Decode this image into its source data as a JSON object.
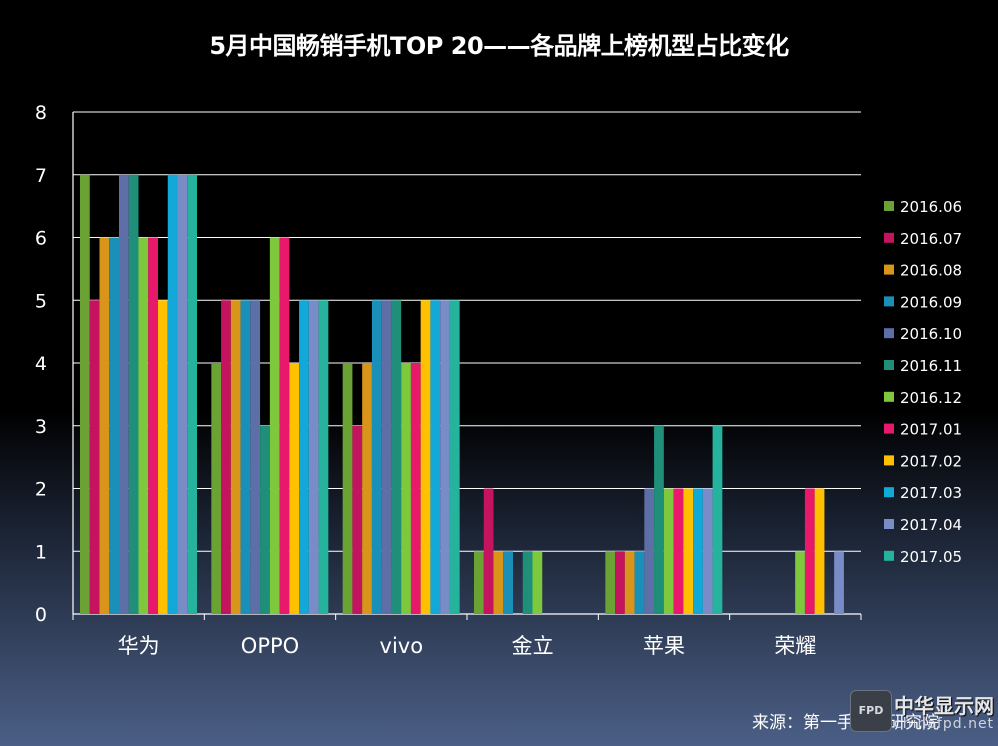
{
  "chart_data": {
    "type": "bar",
    "title": "5月中国畅销手机TOP 20——各品牌上榜机型占比变化",
    "categories": [
      "华为",
      "OPPO",
      "vivo",
      "金立",
      "苹果",
      "荣耀"
    ],
    "ylim": [
      0,
      8
    ],
    "yticks": [
      0,
      1,
      2,
      3,
      4,
      5,
      6,
      7,
      8
    ],
    "grid": true,
    "legend_position": "right",
    "series": [
      {
        "name": "2016.06",
        "color": "#6aa233",
        "values": [
          7,
          4,
          4,
          1,
          1,
          null
        ]
      },
      {
        "name": "2016.07",
        "color": "#c4145f",
        "values": [
          5,
          5,
          3,
          2,
          1,
          null
        ]
      },
      {
        "name": "2016.08",
        "color": "#d9951a",
        "values": [
          6,
          5,
          4,
          1,
          1,
          null
        ]
      },
      {
        "name": "2016.09",
        "color": "#1a8fb8",
        "values": [
          6,
          5,
          5,
          1,
          1,
          null
        ]
      },
      {
        "name": "2016.10",
        "color": "#5e6fa8",
        "values": [
          7,
          5,
          5,
          null,
          2,
          null
        ]
      },
      {
        "name": "2016.11",
        "color": "#1f8f7a",
        "values": [
          7,
          3,
          5,
          1,
          3,
          null
        ]
      },
      {
        "name": "2016.12",
        "color": "#7ec83d",
        "values": [
          6,
          6,
          4,
          1,
          2,
          1
        ]
      },
      {
        "name": "2017.01",
        "color": "#e8196b",
        "values": [
          6,
          6,
          4,
          null,
          2,
          2
        ]
      },
      {
        "name": "2017.02",
        "color": "#ffc000",
        "values": [
          5,
          4,
          5,
          null,
          2,
          2
        ]
      },
      {
        "name": "2017.03",
        "color": "#12a9d8",
        "values": [
          7,
          5,
          5,
          null,
          2,
          null
        ]
      },
      {
        "name": "2017.04",
        "color": "#7a8cc8",
        "values": [
          7,
          5,
          5,
          null,
          2,
          1
        ]
      },
      {
        "name": "2017.05",
        "color": "#25b39e",
        "values": [
          7,
          5,
          5,
          null,
          3,
          null
        ]
      }
    ]
  },
  "source_text": "来源：第一手机界研究院",
  "watermark": {
    "name": "中华显示网",
    "url": "chinafpd.net",
    "badge": "FPD"
  }
}
